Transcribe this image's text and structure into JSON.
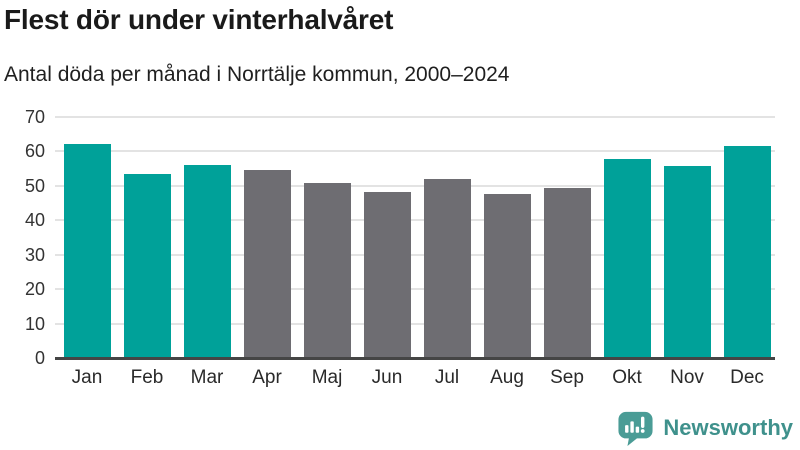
{
  "header": {
    "title": "Flest dör under vinterhalvåret",
    "subtitle": "Antal döda per månad i Norrtälje kommun, 2000–2024"
  },
  "chart_data": {
    "type": "bar",
    "title": "Flest dör under vinterhalvåret",
    "subtitle": "Antal döda per månad i Norrtälje kommun, 2000–2024",
    "categories": [
      "Jan",
      "Feb",
      "Mar",
      "Apr",
      "Maj",
      "Jun",
      "Jul",
      "Aug",
      "Sep",
      "Okt",
      "Nov",
      "Dec"
    ],
    "values": [
      62.3,
      53.4,
      56.2,
      54.5,
      50.9,
      48.2,
      52.0,
      47.7,
      49.3,
      57.7,
      55.7,
      61.7
    ],
    "highlighted_categories": [
      "Jan",
      "Feb",
      "Mar",
      "Okt",
      "Nov",
      "Dec"
    ],
    "xlabel": "",
    "ylabel": "",
    "ylim": [
      0,
      70
    ],
    "yticks": [
      0,
      10,
      20,
      30,
      40,
      50,
      60,
      70
    ],
    "grid": true,
    "legend": false,
    "colors": {
      "highlight": "#00a199",
      "default": "#6e6d72"
    }
  },
  "footer": {
    "brand": "Newsworthy",
    "brand_color": "#3f918c",
    "icon_color": "#4a9c96"
  }
}
